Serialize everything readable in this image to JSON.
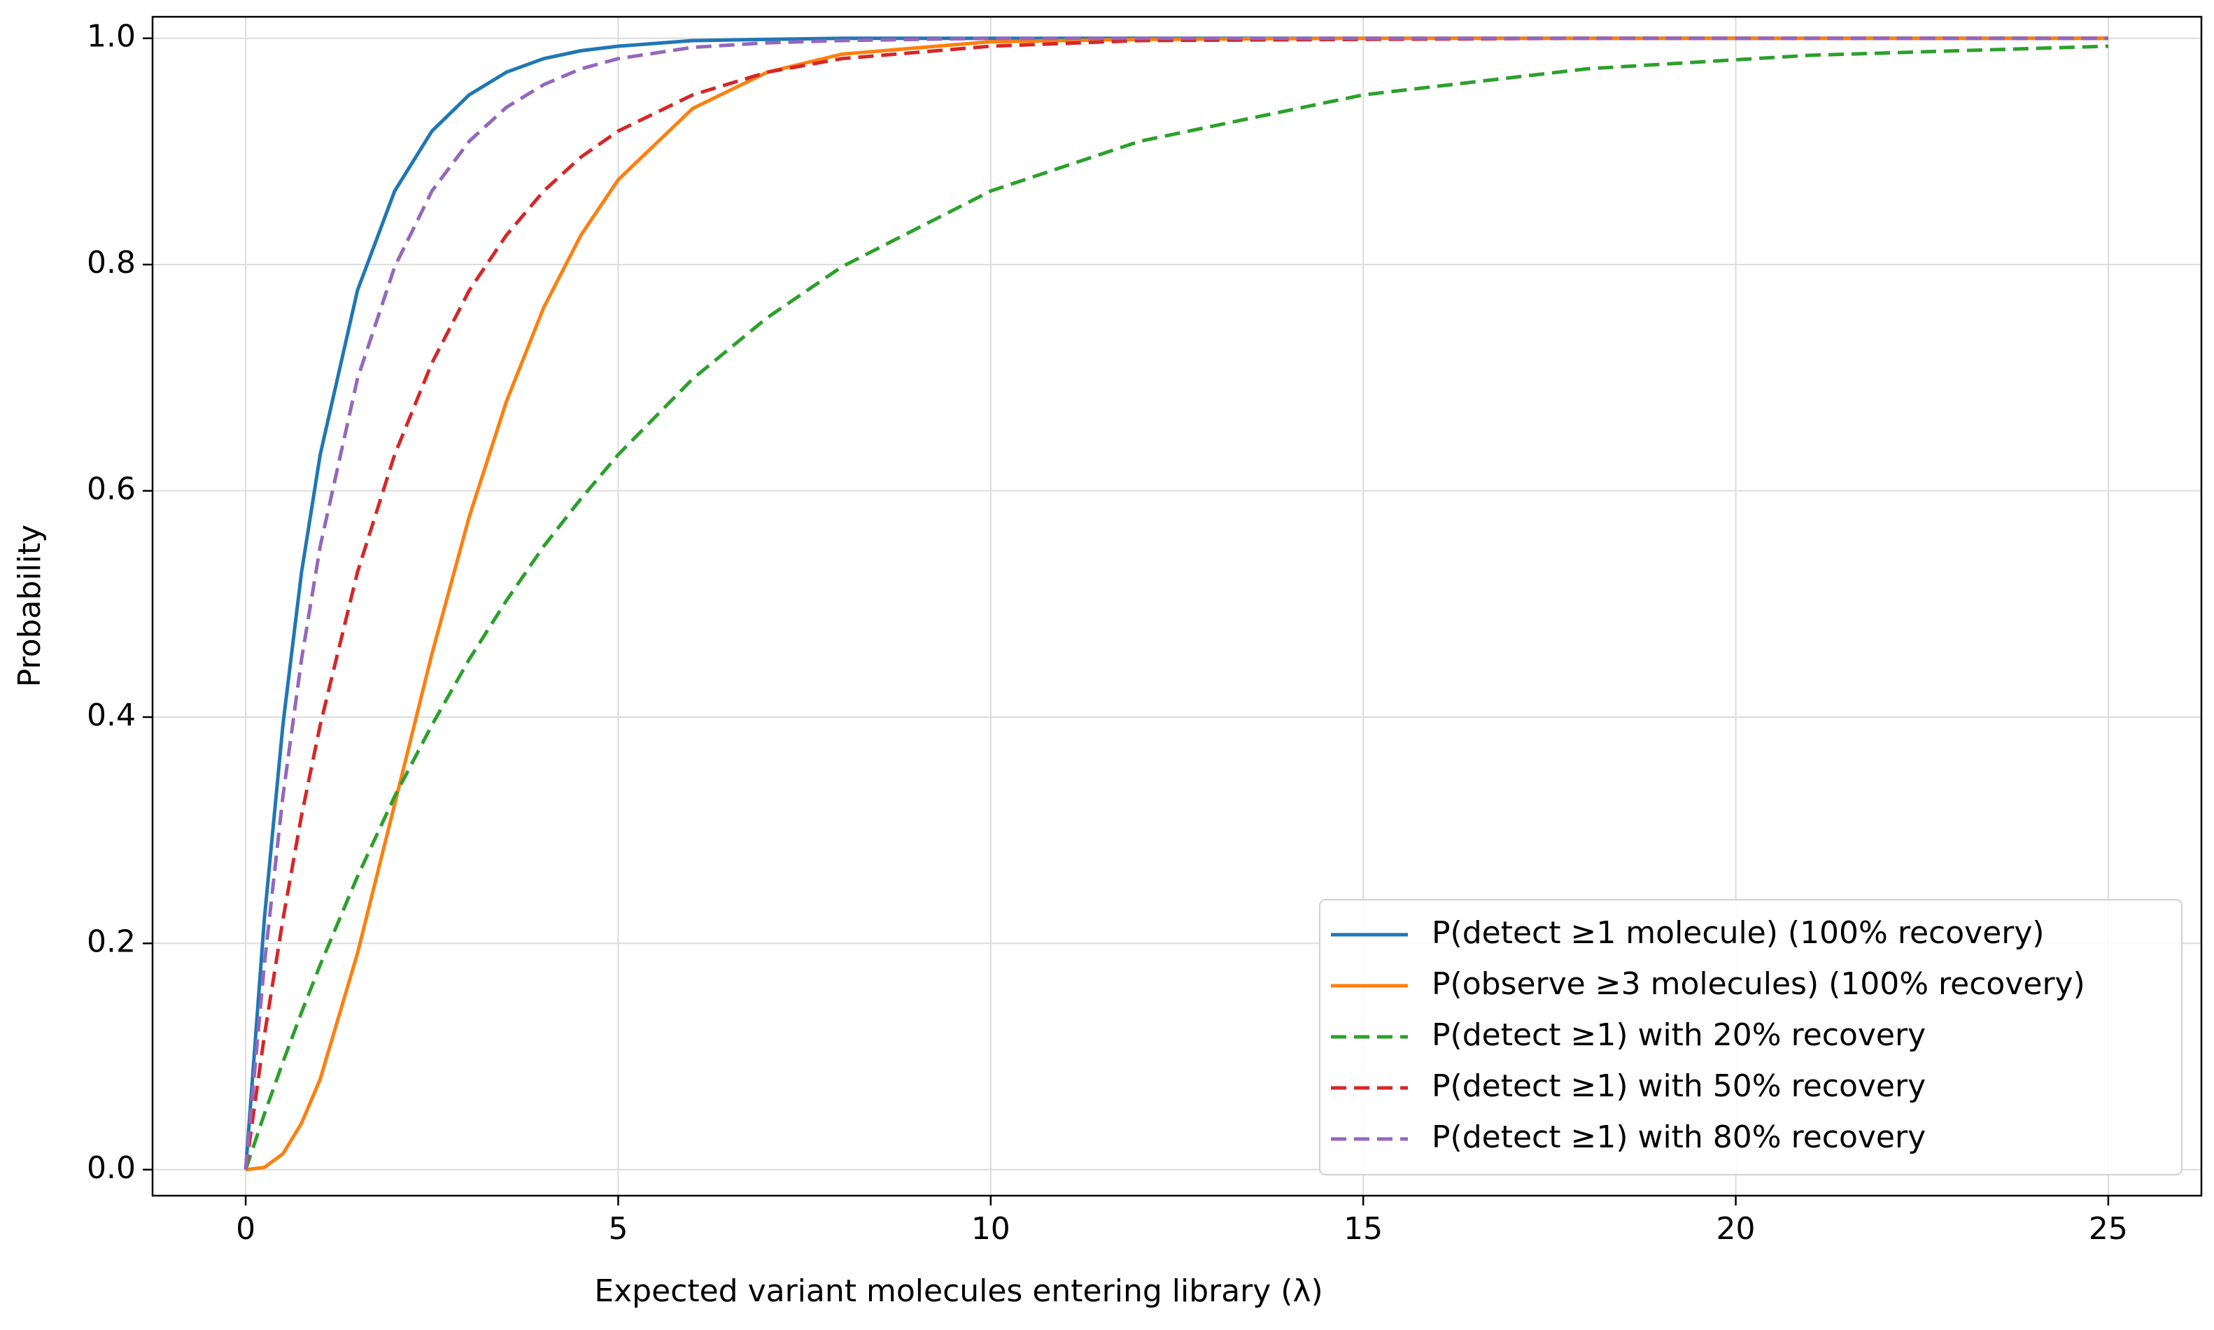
{
  "chart_data": {
    "type": "line",
    "xlabel": "Expected variant molecules entering library (λ)",
    "ylabel": "Probability",
    "x": [
      0,
      0.25,
      0.5,
      0.75,
      1,
      1.5,
      2,
      2.5,
      3,
      3.5,
      4,
      4.5,
      5,
      6,
      7,
      8,
      10,
      12,
      15,
      18,
      21,
      25
    ],
    "series": [
      {
        "name": "P(detect ≥1 molecule) (100% recovery)",
        "color": "#1f77b4",
        "linestyle": "solid",
        "values": [
          0,
          0.221,
          0.393,
          0.528,
          0.632,
          0.777,
          0.865,
          0.918,
          0.95,
          0.97,
          0.982,
          0.989,
          0.993,
          0.998,
          0.999,
          1,
          1,
          1,
          1,
          1,
          1,
          1
        ]
      },
      {
        "name": "P(observe ≥3 molecules) (100% recovery)",
        "color": "#ff7f0e",
        "linestyle": "solid",
        "values": [
          0,
          0.002,
          0.014,
          0.041,
          0.08,
          0.191,
          0.323,
          0.456,
          0.577,
          0.679,
          0.762,
          0.826,
          0.875,
          0.938,
          0.97,
          0.986,
          0.997,
          0.999,
          1,
          1,
          1,
          1
        ]
      },
      {
        "name": "P(detect ≥1) with 20% recovery",
        "color": "#2ca02c",
        "linestyle": "dashed",
        "values": [
          0,
          0.049,
          0.095,
          0.139,
          0.181,
          0.259,
          0.33,
          0.393,
          0.451,
          0.503,
          0.551,
          0.593,
          0.632,
          0.699,
          0.753,
          0.798,
          0.865,
          0.909,
          0.95,
          0.973,
          0.985,
          0.993
        ]
      },
      {
        "name": "P(detect ≥1) with 50% recovery",
        "color": "#d62728",
        "linestyle": "dashed",
        "values": [
          0,
          0.118,
          0.221,
          0.313,
          0.393,
          0.528,
          0.632,
          0.713,
          0.777,
          0.826,
          0.865,
          0.895,
          0.918,
          0.95,
          0.97,
          0.982,
          0.993,
          0.998,
          0.999,
          1,
          1,
          1
        ]
      },
      {
        "name": "P(detect ≥1) with 80% recovery",
        "color": "#9467bd",
        "linestyle": "dashed",
        "values": [
          0,
          0.181,
          0.33,
          0.451,
          0.551,
          0.699,
          0.798,
          0.865,
          0.909,
          0.939,
          0.959,
          0.973,
          0.982,
          0.992,
          0.996,
          0.998,
          1,
          1,
          1,
          1,
          1,
          1
        ]
      }
    ],
    "xlim": [
      -1.25,
      26.25
    ],
    "xticks": [
      0,
      5,
      10,
      15,
      20,
      25
    ],
    "ylim": [
      -0.023,
      1.019
    ],
    "yticks": [
      {
        "value": 0,
        "label": "0.0"
      },
      {
        "value": 0.2,
        "label": "0.2"
      },
      {
        "value": 0.4,
        "label": "0.4"
      },
      {
        "value": 0.6,
        "label": "0.6"
      },
      {
        "value": 0.8,
        "label": "0.8"
      },
      {
        "value": 1,
        "label": "1.0"
      }
    ],
    "grid": true,
    "legend": "lower right"
  }
}
